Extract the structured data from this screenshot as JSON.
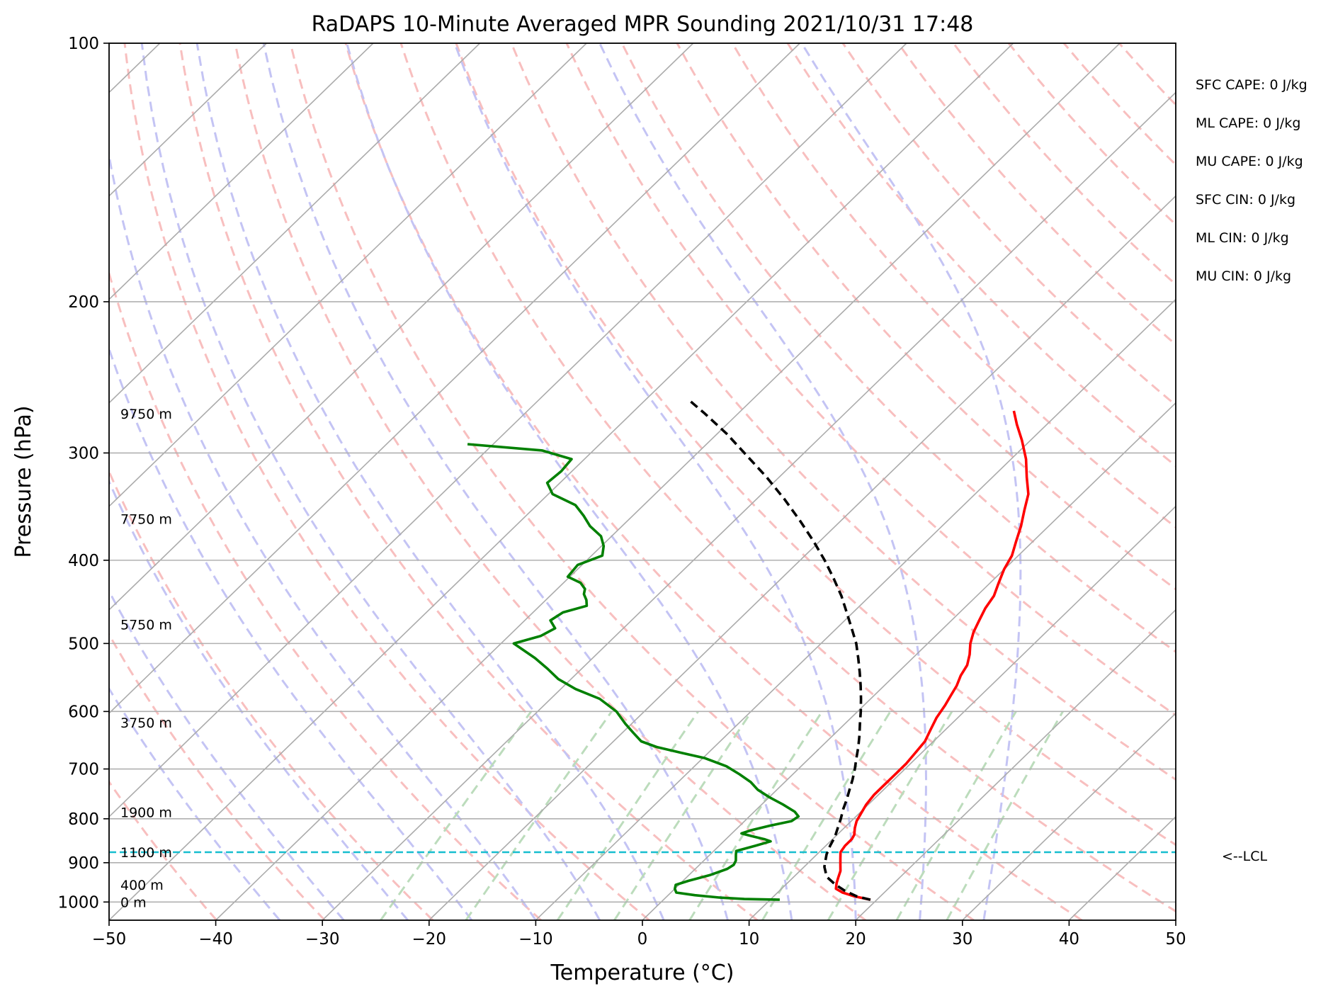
{
  "chart_data": {
    "type": "line",
    "subtype": "skew-T log-P sounding",
    "title": "RaDAPS 10-Minute Averaged MPR Sounding 2021/10/31 17:48",
    "xlabel": "Temperature (°C)",
    "ylabel": "Pressure (hPa)",
    "xlim": [
      -50,
      50
    ],
    "ylim": [
      1050,
      100
    ],
    "y_scale": "log",
    "grid": true,
    "xticks": [
      -50,
      -40,
      -30,
      -20,
      -10,
      0,
      10,
      20,
      30,
      40,
      50
    ],
    "xtick_labels": [
      "−50",
      "−40",
      "−30",
      "−20",
      "−10",
      "0",
      "10",
      "20",
      "30",
      "40",
      "50"
    ],
    "yticks": [
      1000,
      900,
      800,
      700,
      600,
      500,
      400,
      300,
      200,
      100
    ],
    "ytick_labels": [
      "1000",
      "900",
      "800",
      "700",
      "600",
      "500",
      "400",
      "300",
      "200",
      "100"
    ],
    "skew_deg_per_decade": 83,
    "reference_lines": {
      "dry_adiabats_theta_K": [
        220,
        230,
        240,
        250,
        260,
        270,
        280,
        290,
        300,
        310,
        320,
        330,
        340,
        350,
        360,
        370,
        380,
        390,
        400,
        410,
        420,
        430,
        440,
        450
      ],
      "moist_adiabats_Tstart_C": [
        -34,
        -28,
        -22,
        -16,
        -10,
        -4,
        2,
        8,
        14,
        20,
        26,
        32
      ],
      "mixing_ratio_lines_gkg": [
        0.5,
        1,
        2,
        3,
        5,
        8,
        12,
        18,
        24
      ],
      "colors": {
        "dry": "#f8bfbf",
        "moist": "#c4c4f4",
        "mixing": "#bcdcbc",
        "isotherm": "#ababab",
        "grid": "#b0b0b0"
      }
    },
    "series": [
      {
        "color": "#ff0000",
        "points": [
          [
            994,
            19.4
          ],
          [
            985,
            17.6
          ],
          [
            975,
            16.1
          ],
          [
            965,
            15.1
          ],
          [
            950,
            14.6
          ],
          [
            935,
            14.2
          ],
          [
            920,
            13.8
          ],
          [
            905,
            13.2
          ],
          [
            890,
            12.6
          ],
          [
            875,
            12.0
          ],
          [
            860,
            11.8
          ],
          [
            845,
            11.8
          ],
          [
            835,
            11.6
          ],
          [
            820,
            11.0
          ],
          [
            805,
            10.5
          ],
          [
            790,
            10.2
          ],
          [
            770,
            9.8
          ],
          [
            750,
            9.6
          ],
          [
            730,
            9.6
          ],
          [
            710,
            9.6
          ],
          [
            690,
            9.6
          ],
          [
            670,
            9.4
          ],
          [
            650,
            9.2
          ],
          [
            630,
            8.6
          ],
          [
            610,
            8.0
          ],
          [
            590,
            7.6
          ],
          [
            575,
            7.2
          ],
          [
            560,
            6.8
          ],
          [
            545,
            6.2
          ],
          [
            530,
            5.8
          ],
          [
            515,
            5.0
          ],
          [
            500,
            4.0
          ],
          [
            485,
            3.2
          ],
          [
            470,
            2.6
          ],
          [
            455,
            2.0
          ],
          [
            440,
            1.6
          ],
          [
            425,
            0.8
          ],
          [
            410,
            0.0
          ],
          [
            395,
            -0.6
          ],
          [
            380,
            -1.6
          ],
          [
            365,
            -2.6
          ],
          [
            350,
            -3.8
          ],
          [
            335,
            -5.0
          ],
          [
            320,
            -6.8
          ],
          [
            305,
            -8.6
          ],
          [
            290,
            -10.8
          ],
          [
            278,
            -12.8
          ],
          [
            268,
            -14.4
          ]
        ]
      },
      {
        "color": "#008000",
        "points": [
          [
            994,
            10.9
          ],
          [
            992,
            7.5
          ],
          [
            988,
            5.0
          ],
          [
            982,
            2.5
          ],
          [
            975,
            0.5
          ],
          [
            965,
            0.0
          ],
          [
            955,
            -0.3
          ],
          [
            945,
            0.5
          ],
          [
            930,
            2.0
          ],
          [
            915,
            3.0
          ],
          [
            905,
            3.2
          ],
          [
            895,
            3.0
          ],
          [
            880,
            2.4
          ],
          [
            872,
            2.1
          ],
          [
            860,
            3.4
          ],
          [
            850,
            4.4
          ],
          [
            845,
            3.6
          ],
          [
            838,
            2.1
          ],
          [
            832,
            0.9
          ],
          [
            825,
            1.5
          ],
          [
            815,
            2.8
          ],
          [
            805,
            4.4
          ],
          [
            795,
            4.6
          ],
          [
            785,
            3.8
          ],
          [
            770,
            2.0
          ],
          [
            755,
            0.0
          ],
          [
            740,
            -1.8
          ],
          [
            725,
            -3.2
          ],
          [
            710,
            -5.0
          ],
          [
            695,
            -7.0
          ],
          [
            680,
            -9.8
          ],
          [
            670,
            -12.6
          ],
          [
            660,
            -15.4
          ],
          [
            650,
            -17.4
          ],
          [
            635,
            -19.0
          ],
          [
            620,
            -20.6
          ],
          [
            600,
            -22.6
          ],
          [
            580,
            -25.4
          ],
          [
            565,
            -28.6
          ],
          [
            550,
            -31.2
          ],
          [
            535,
            -33.2
          ],
          [
            520,
            -35.4
          ],
          [
            500,
            -38.8
          ],
          [
            490,
            -37.0
          ],
          [
            480,
            -36.4
          ],
          [
            470,
            -37.6
          ],
          [
            460,
            -37.2
          ],
          [
            452,
            -35.6
          ],
          [
            445,
            -36.2
          ],
          [
            438,
            -37.0
          ],
          [
            432,
            -37.4
          ],
          [
            425,
            -38.4
          ],
          [
            418,
            -40.2
          ],
          [
            405,
            -40.4
          ],
          [
            395,
            -39.0
          ],
          [
            385,
            -39.8
          ],
          [
            375,
            -41.0
          ],
          [
            365,
            -43.0
          ],
          [
            355,
            -44.6
          ],
          [
            345,
            -46.4
          ],
          [
            335,
            -49.6
          ],
          [
            325,
            -51.2
          ],
          [
            315,
            -51.0
          ],
          [
            305,
            -51.2
          ],
          [
            298,
            -54.8
          ],
          [
            293,
            -62.4
          ]
        ]
      },
      {
        "color": "#000000",
        "line_style": "dashed",
        "points": [
          [
            994,
            19.4
          ],
          [
            985,
            17.8
          ],
          [
            970,
            16.1
          ],
          [
            955,
            14.7
          ],
          [
            935,
            13.1
          ],
          [
            910,
            11.9
          ],
          [
            895,
            11.4
          ],
          [
            880,
            10.9
          ],
          [
            860,
            10.4
          ],
          [
            840,
            10.0
          ],
          [
            820,
            9.4
          ],
          [
            800,
            8.8
          ],
          [
            780,
            8.1
          ],
          [
            760,
            7.5
          ],
          [
            740,
            6.8
          ],
          [
            720,
            6.1
          ],
          [
            700,
            5.3
          ],
          [
            680,
            4.4
          ],
          [
            660,
            3.5
          ],
          [
            640,
            2.5
          ],
          [
            620,
            1.4
          ],
          [
            600,
            0.3
          ],
          [
            580,
            -0.9
          ],
          [
            560,
            -2.2
          ],
          [
            540,
            -3.6
          ],
          [
            520,
            -5.1
          ],
          [
            500,
            -6.7
          ],
          [
            480,
            -8.6
          ],
          [
            460,
            -10.6
          ],
          [
            440,
            -12.7
          ],
          [
            420,
            -15.1
          ],
          [
            400,
            -17.7
          ],
          [
            380,
            -20.6
          ],
          [
            360,
            -23.8
          ],
          [
            340,
            -27.3
          ],
          [
            320,
            -31.2
          ],
          [
            300,
            -35.6
          ],
          [
            285,
            -39.1
          ],
          [
            270,
            -43.1
          ],
          [
            260,
            -46.0
          ]
        ]
      }
    ],
    "lcl": {
      "pressure": 875,
      "label": "<--LCL",
      "color": "#17becf"
    },
    "height_labels": [
      {
        "text": "9750 m",
        "pressure": 270
      },
      {
        "text": "7750 m",
        "pressure": 358
      },
      {
        "text": "5750 m",
        "pressure": 475
      },
      {
        "text": "3750 m",
        "pressure": 618
      },
      {
        "text": "1900 m",
        "pressure": 786
      },
      {
        "text": "1100 m",
        "pressure": 875
      },
      {
        "text": "400 m",
        "pressure": 955
      },
      {
        "text": "0 m",
        "pressure": 1000
      }
    ]
  },
  "stats": [
    "SFC CAPE: 0 J/kg",
    "ML CAPE: 0 J/kg",
    "MU CAPE: 0 J/kg",
    "SFC CIN: 0 J/kg",
    "ML CIN: 0 J/kg",
    "MU CIN: 0 J/kg"
  ]
}
